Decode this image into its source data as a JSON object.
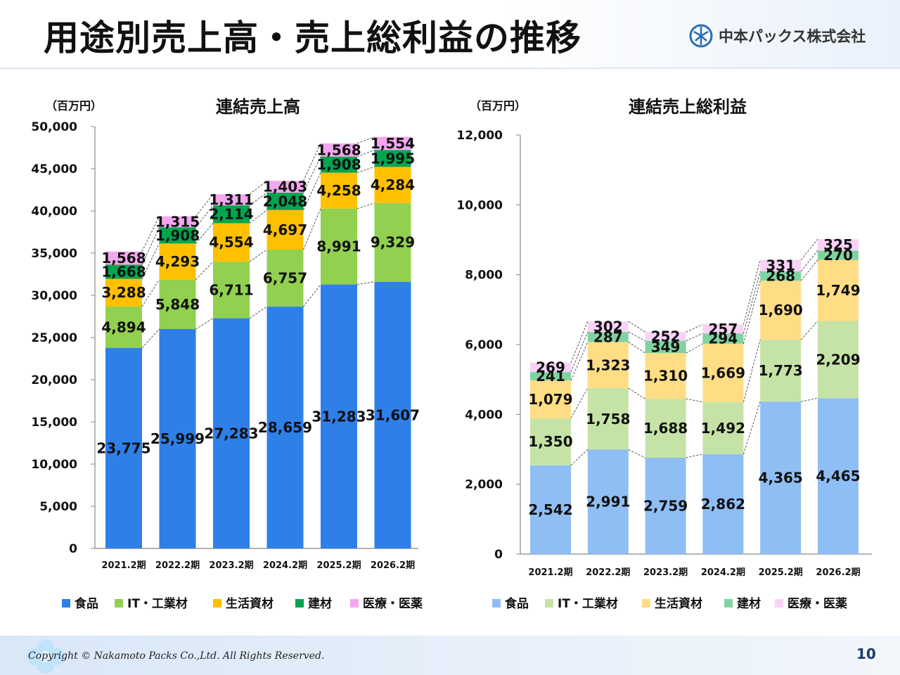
{
  "header": {
    "title": "用途別売上高・売上総利益の推移",
    "company": "中本パックス株式会社"
  },
  "footer": {
    "copyright": "Copyright © Nakamoto Packs Co.,Ltd. All Rights Reserved.",
    "page_number": "10"
  },
  "chart_data": [
    {
      "type": "bar",
      "stacked": true,
      "title": "連結売上高",
      "unit": "（百万円）",
      "categories": [
        "2021.2期",
        "2022.2期",
        "2023.2期",
        "2024.2期",
        "2025.2期",
        "2026.2期"
      ],
      "ylim": [
        0,
        50000
      ],
      "yticks": [
        "0",
        "5,000",
        "10,000",
        "15,000",
        "20,000",
        "25,000",
        "30,000",
        "35,000",
        "40,000",
        "45,000",
        "50,000"
      ],
      "legend_position": "bottom",
      "series": [
        {
          "name": "食品",
          "color": "#2e7fe8",
          "values": [
            23775,
            25999,
            27283,
            28659,
            31283,
            31607
          ],
          "labels": [
            "23,775",
            "25,999",
            "27,283",
            "28,659",
            "31,283",
            "31,607"
          ]
        },
        {
          "name": "IT・工業材",
          "color": "#92d050",
          "values": [
            4894,
            5848,
            6711,
            6757,
            8991,
            9329
          ],
          "labels": [
            "4,894",
            "5,848",
            "6,711",
            "6,757",
            "8,991",
            "9,329"
          ]
        },
        {
          "name": "生活資材",
          "color": "#ffc000",
          "values": [
            3288,
            4293,
            4554,
            4697,
            4258,
            4284
          ],
          "labels": [
            "3,288",
            "4,293",
            "4,554",
            "4,697",
            "4,258",
            "4,284"
          ]
        },
        {
          "name": "建材",
          "color": "#00a550",
          "values": [
            1668,
            1908,
            2114,
            2048,
            1908,
            1995
          ],
          "labels": [
            "1,668",
            "1,908",
            "2,114",
            "2,048",
            "1,908",
            "1,995"
          ]
        },
        {
          "name": "医療・医薬",
          "color": "#f5a6f0",
          "values": [
            1568,
            1315,
            1311,
            1403,
            1568,
            1554
          ],
          "labels": [
            "1,568",
            "1,315",
            "1,311",
            "1,403",
            "1,568",
            "1,554"
          ]
        }
      ]
    },
    {
      "type": "bar",
      "stacked": true,
      "title": "連結売上総利益",
      "unit": "（百万円）",
      "categories": [
        "2021.2期",
        "2022.2期",
        "2023.2期",
        "2024.2期",
        "2025.2期",
        "2026.2期"
      ],
      "ylim": [
        0,
        12000
      ],
      "yticks": [
        "0",
        "2,000",
        "4,000",
        "6,000",
        "8,000",
        "10,000",
        "12,000"
      ],
      "legend_position": "bottom",
      "series": [
        {
          "name": "食品",
          "color": "#8fbef5",
          "values": [
            2542,
            2991,
            2759,
            2862,
            4365,
            4465
          ],
          "labels": [
            "2,542",
            "2,991",
            "2,759",
            "2,862",
            "4,365",
            "4,465"
          ]
        },
        {
          "name": "IT・工業材",
          "color": "#c5e3a6",
          "values": [
            1350,
            1758,
            1688,
            1492,
            1773,
            2209
          ],
          "labels": [
            "1,350",
            "1,758",
            "1,688",
            "1,492",
            "1,773",
            "2,209"
          ]
        },
        {
          "name": "生活資材",
          "color": "#ffdd85",
          "values": [
            1079,
            1323,
            1310,
            1669,
            1690,
            1749
          ],
          "labels": [
            "1,079",
            "1,323",
            "1,310",
            "1,669",
            "1,690",
            "1,749"
          ]
        },
        {
          "name": "建材",
          "color": "#7fd3a0",
          "values": [
            241,
            287,
            349,
            294,
            268,
            270
          ],
          "labels": [
            "241",
            "287",
            "349",
            "294",
            "268",
            "270"
          ]
        },
        {
          "name": "医療・医薬",
          "color": "#fad2f7",
          "values": [
            269,
            302,
            252,
            257,
            331,
            325
          ],
          "labels": [
            "269",
            "302",
            "252",
            "257",
            "331",
            "325"
          ]
        }
      ]
    }
  ]
}
